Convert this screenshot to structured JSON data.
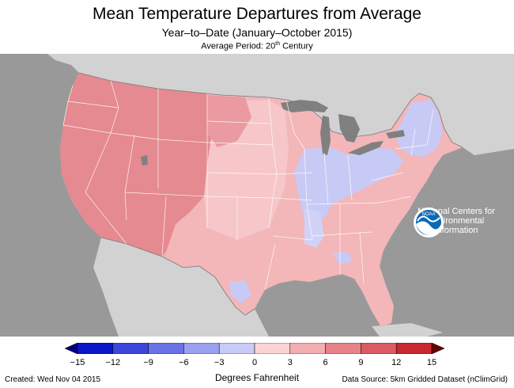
{
  "title": "Mean Temperature Departures from Average",
  "subtitle": "Year–to–Date (January–October 2015)",
  "average_period": {
    "prefix": "Average Period: 20",
    "superscript": "th",
    "suffix": " Century"
  },
  "logo": {
    "icon": "noaa-logo-icon",
    "text": "NOAA",
    "lines": [
      "National Centers for",
      "Environmental",
      "Information"
    ]
  },
  "legend": {
    "units": "Degrees Fahrenheit",
    "ticks": [
      "−15",
      "−12",
      "−9",
      "−6",
      "−3",
      "0",
      "3",
      "6",
      "9",
      "12",
      "15"
    ],
    "colors": [
      "#0a14c8",
      "#3c46dc",
      "#6a72e6",
      "#9aa0f0",
      "#c8caf8",
      "#fcd2d2",
      "#f2aeb0",
      "#e68288",
      "#dc5a62",
      "#c8282e"
    ],
    "low_color": "#000080",
    "high_color": "#640000"
  },
  "footer": {
    "created": "Created: Wed Nov 04 2015",
    "source": "Data Source: 5km Gridded Dataset (nClimGrid)"
  },
  "map_colors": {
    "ocean": "#999999",
    "land_outside": "#d2d2d2",
    "lakes": "#808080",
    "west_warm": "#e58a90",
    "central_warm": "#f3b6b9",
    "plains_light": "#f6c6c8",
    "cool": "#c8caf6",
    "state_lines": "#ffffff"
  }
}
